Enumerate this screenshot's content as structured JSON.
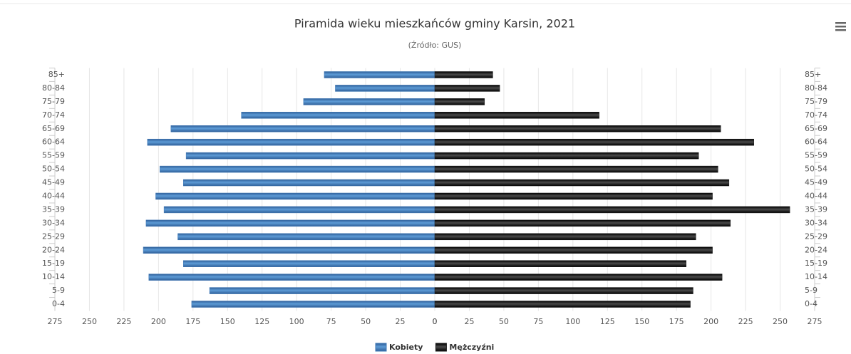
{
  "chart_data": {
    "type": "pyramid",
    "title": "Piramida wieku mieszkańców gminy Karsin, 2021",
    "subtitle": "(Źródło: GUS)",
    "categories": [
      "85+",
      "80-84",
      "75-79",
      "70-74",
      "65-69",
      "60-64",
      "55-59",
      "50-54",
      "45-49",
      "40-44",
      "35-39",
      "30-34",
      "25-29",
      "20-24",
      "15-19",
      "10-14",
      "5-9",
      "0-4"
    ],
    "series": [
      {
        "name": "Kobiety",
        "color": "#3f78b5",
        "side": "left",
        "values": [
          80,
          72,
          95,
          140,
          191,
          208,
          180,
          199,
          182,
          202,
          196,
          209,
          186,
          211,
          182,
          207,
          163,
          176
        ]
      },
      {
        "name": "Mężczyźni",
        "color": "#1a1a1a",
        "side": "right",
        "values": [
          42,
          47,
          36,
          119,
          207,
          231,
          191,
          205,
          213,
          201,
          257,
          214,
          189,
          201,
          182,
          208,
          187,
          185
        ]
      }
    ],
    "xlim": [
      0,
      275
    ],
    "xticks": [
      0,
      25,
      50,
      75,
      100,
      125,
      150,
      175,
      200,
      225,
      250,
      275
    ],
    "grid": true
  }
}
